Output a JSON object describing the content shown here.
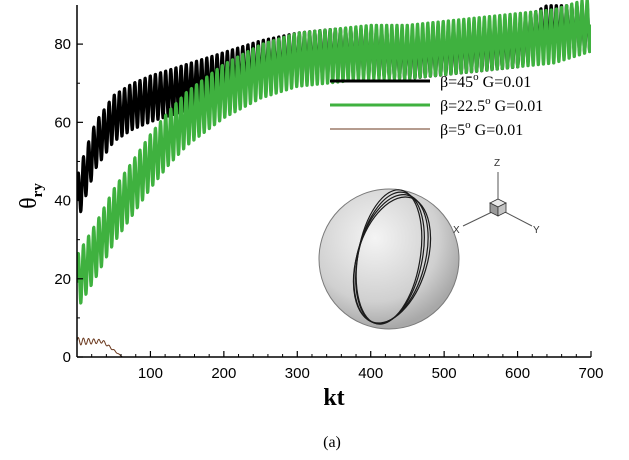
{
  "chart_data": {
    "type": "line",
    "xlabel": "kt",
    "ylabel_main": "θ",
    "ylabel_sub": "ry",
    "xlim": [
      0,
      700
    ],
    "ylim": [
      0,
      90
    ],
    "x_ticks": [
      100,
      200,
      300,
      400,
      500,
      600,
      700
    ],
    "y_ticks": [
      0,
      20,
      40,
      60,
      80
    ],
    "grid": false,
    "legend_position": "right",
    "series": [
      {
        "name_parts": {
          "pre": "β=45",
          "sup": "o",
          "post": " G=0.01"
        },
        "color": "#000000",
        "line_width": 3,
        "oscillation_amplitude": 6,
        "oscillation_period": 7,
        "points": [
          [
            0,
            40
          ],
          [
            10,
            46
          ],
          [
            25,
            54
          ],
          [
            50,
            61
          ],
          [
            75,
            64
          ],
          [
            100,
            66
          ],
          [
            150,
            69
          ],
          [
            200,
            72
          ],
          [
            250,
            75
          ],
          [
            300,
            77
          ],
          [
            350,
            78
          ],
          [
            400,
            78
          ],
          [
            450,
            77
          ],
          [
            500,
            78
          ],
          [
            550,
            79
          ],
          [
            600,
            80
          ],
          [
            640,
            84
          ],
          [
            670,
            84
          ],
          [
            700,
            84
          ]
        ]
      },
      {
        "name_parts": {
          "pre": "β=22.5",
          "sup": "o",
          "post": " G=0.01"
        },
        "color": "#3fb13f",
        "line_width": 3,
        "oscillation_amplitude": 7,
        "oscillation_period": 7,
        "points": [
          [
            0,
            19
          ],
          [
            25,
            27
          ],
          [
            50,
            36
          ],
          [
            75,
            43
          ],
          [
            100,
            50
          ],
          [
            125,
            56
          ],
          [
            150,
            61
          ],
          [
            200,
            68
          ],
          [
            250,
            73
          ],
          [
            300,
            76
          ],
          [
            350,
            77
          ],
          [
            400,
            78
          ],
          [
            450,
            78
          ],
          [
            500,
            79
          ],
          [
            550,
            80
          ],
          [
            600,
            81
          ],
          [
            650,
            82
          ],
          [
            700,
            85
          ]
        ]
      },
      {
        "name_parts": {
          "pre": "β=5",
          "sup": "o",
          "post": " G=0.01"
        },
        "color": "#6b3a1f",
        "line_width": 1,
        "oscillation_amplitude": 1,
        "oscillation_period": 7,
        "points": [
          [
            0,
            4
          ],
          [
            20,
            4
          ],
          [
            35,
            4
          ],
          [
            45,
            2.5
          ],
          [
            55,
            1
          ],
          [
            62,
            0
          ]
        ]
      }
    ],
    "inset": {
      "type": "sphere-trajectory",
      "axis_labels": {
        "z": "Z",
        "x": "X",
        "y": "Y"
      }
    },
    "caption": "(a)"
  }
}
